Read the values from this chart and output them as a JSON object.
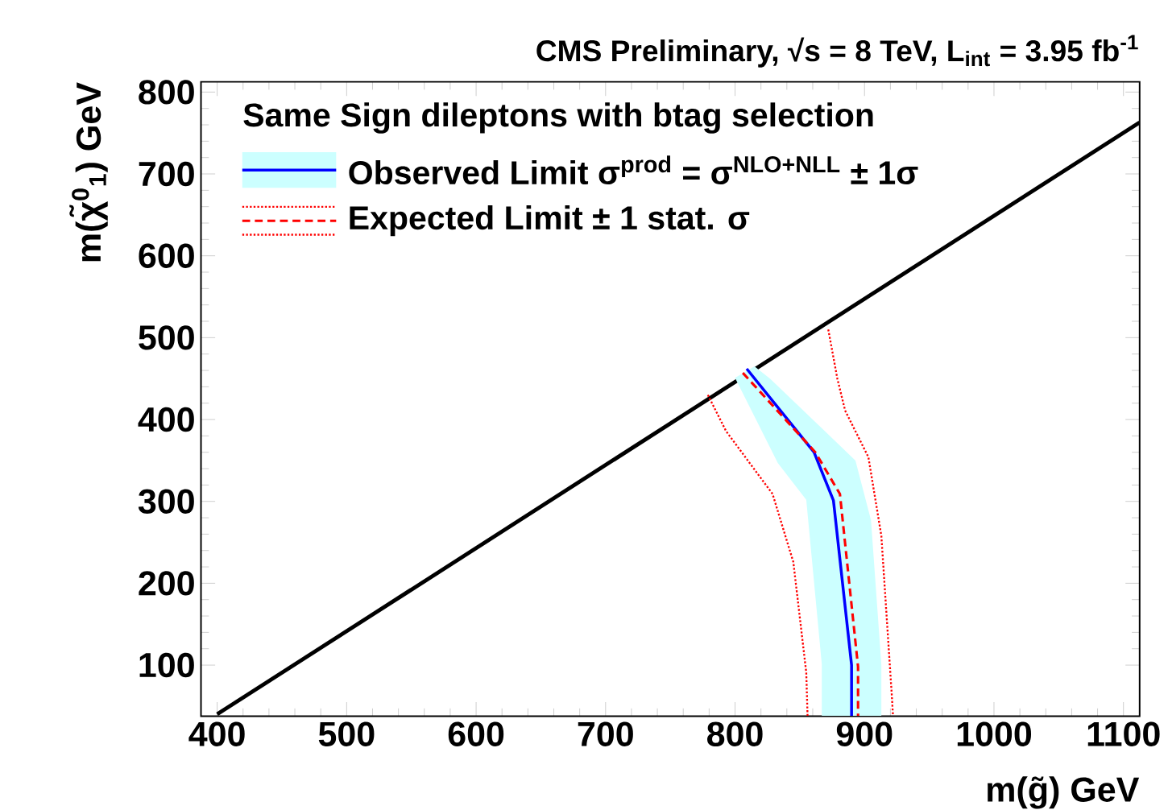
{
  "chart_data": {
    "type": "line",
    "title": "CMS Preliminary, √s = 8 TeV, L$_{int}$ = 3.95 fb$^{-1}$",
    "xlabel": "m(g̃) GeV",
    "ylabel": "m(χ̃$^{0}$$_{1}$) GeV",
    "legend_title": "Same Sign dileptons with btag selection",
    "legend": "top left",
    "xlim": [
      387.5,
      1112.5
    ],
    "xticks": [
      400,
      500,
      600,
      700,
      800,
      900,
      1000,
      1100
    ],
    "ylim": [
      37.5,
      812.5
    ],
    "yticks": [
      100,
      200,
      300,
      400,
      500,
      600,
      700,
      800
    ],
    "series": [
      {
        "color": "#000000",
        "line_style": "solid",
        "x": [
          400,
          1112.5
        ],
        "values": [
          40,
          763
        ]
      },
      {
        "type": "area",
        "color": "#ccffff",
        "x": [
          800,
          833,
          855,
          867,
          867,
          913,
          913,
          905,
          893,
          827,
          815
        ],
        "values": [
          451,
          347,
          302,
          101,
          38,
          38,
          101,
          277,
          350,
          450,
          465
        ]
      },
      {
        "name": "Observed Limit σ$^{prod}$ = σ$^{NLO+NLL}$ ± 1σ",
        "color": "#0000ff",
        "line_style": "solid",
        "x": [
          809,
          861,
          876,
          890,
          890
        ],
        "values": [
          462,
          360,
          301,
          100,
          38
        ]
      },
      {
        "name": "Expected Limit ± 1 stat. σ",
        "color": "#ff0000",
        "line_style": "dashed",
        "x": [
          806,
          862,
          881,
          895,
          895
        ],
        "values": [
          457,
          360,
          309,
          98,
          38
        ]
      },
      {
        "color": "#ff0000",
        "line_style": "dotted",
        "x": [
          779,
          793,
          829,
          845,
          855,
          856
        ],
        "values": [
          430,
          386,
          309,
          226,
          91,
          38
        ]
      },
      {
        "color": "#ff0000",
        "line_style": "dotted",
        "x": [
          872,
          879,
          885,
          903,
          913,
          921,
          922
        ],
        "values": [
          510,
          450,
          411,
          354,
          258,
          65,
          38
        ]
      }
    ]
  }
}
